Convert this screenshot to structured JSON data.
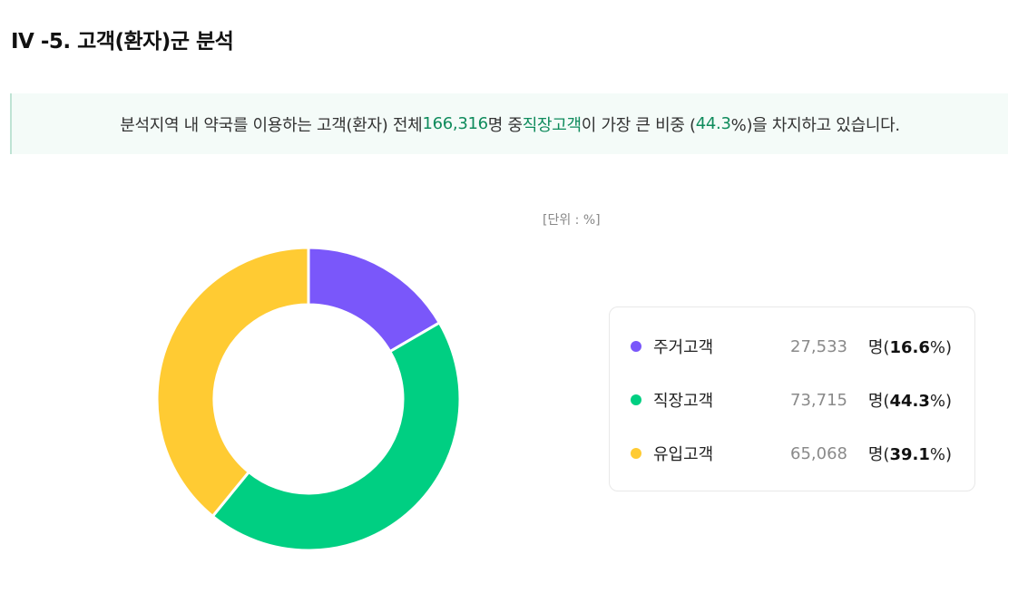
{
  "header": {
    "title": "IV -5. 고객(환자)군 분석"
  },
  "summary": {
    "prefix": "분석지역 내 약국를 이용하는 고객(환자) 전체 ",
    "total": "166,316",
    "mid1": "명 중 ",
    "top_group": "직장고객",
    "mid2": "이 가장 큰 비중 (",
    "top_pct": "44.3",
    "suffix": "%)을 차지하고 있습니다."
  },
  "unit_label": "[단위 : %]",
  "colors": {
    "accent": "#0f8b5c",
    "resident": "#7a57fa",
    "worker": "#00cf82",
    "inflow": "#ffcb33"
  },
  "chart_data": {
    "type": "pie",
    "donut": true,
    "categories": [
      "주거고객",
      "직장고객",
      "유입고객"
    ],
    "values": [
      16.6,
      44.3,
      39.1
    ],
    "counts": [
      27533,
      73715,
      65068
    ],
    "colors": [
      "#7a57fa",
      "#00cf82",
      "#ffcb33"
    ]
  },
  "legend": [
    {
      "name": "주거고객",
      "count": "27,533",
      "unit": "명(",
      "pct": "16.6",
      "close": "%)"
    },
    {
      "name": "직장고객",
      "count": "73,715",
      "unit": "명(",
      "pct": "44.3",
      "close": "%)"
    },
    {
      "name": "유입고객",
      "count": "65,068",
      "unit": "명(",
      "pct": "39.1",
      "close": "%)"
    }
  ]
}
